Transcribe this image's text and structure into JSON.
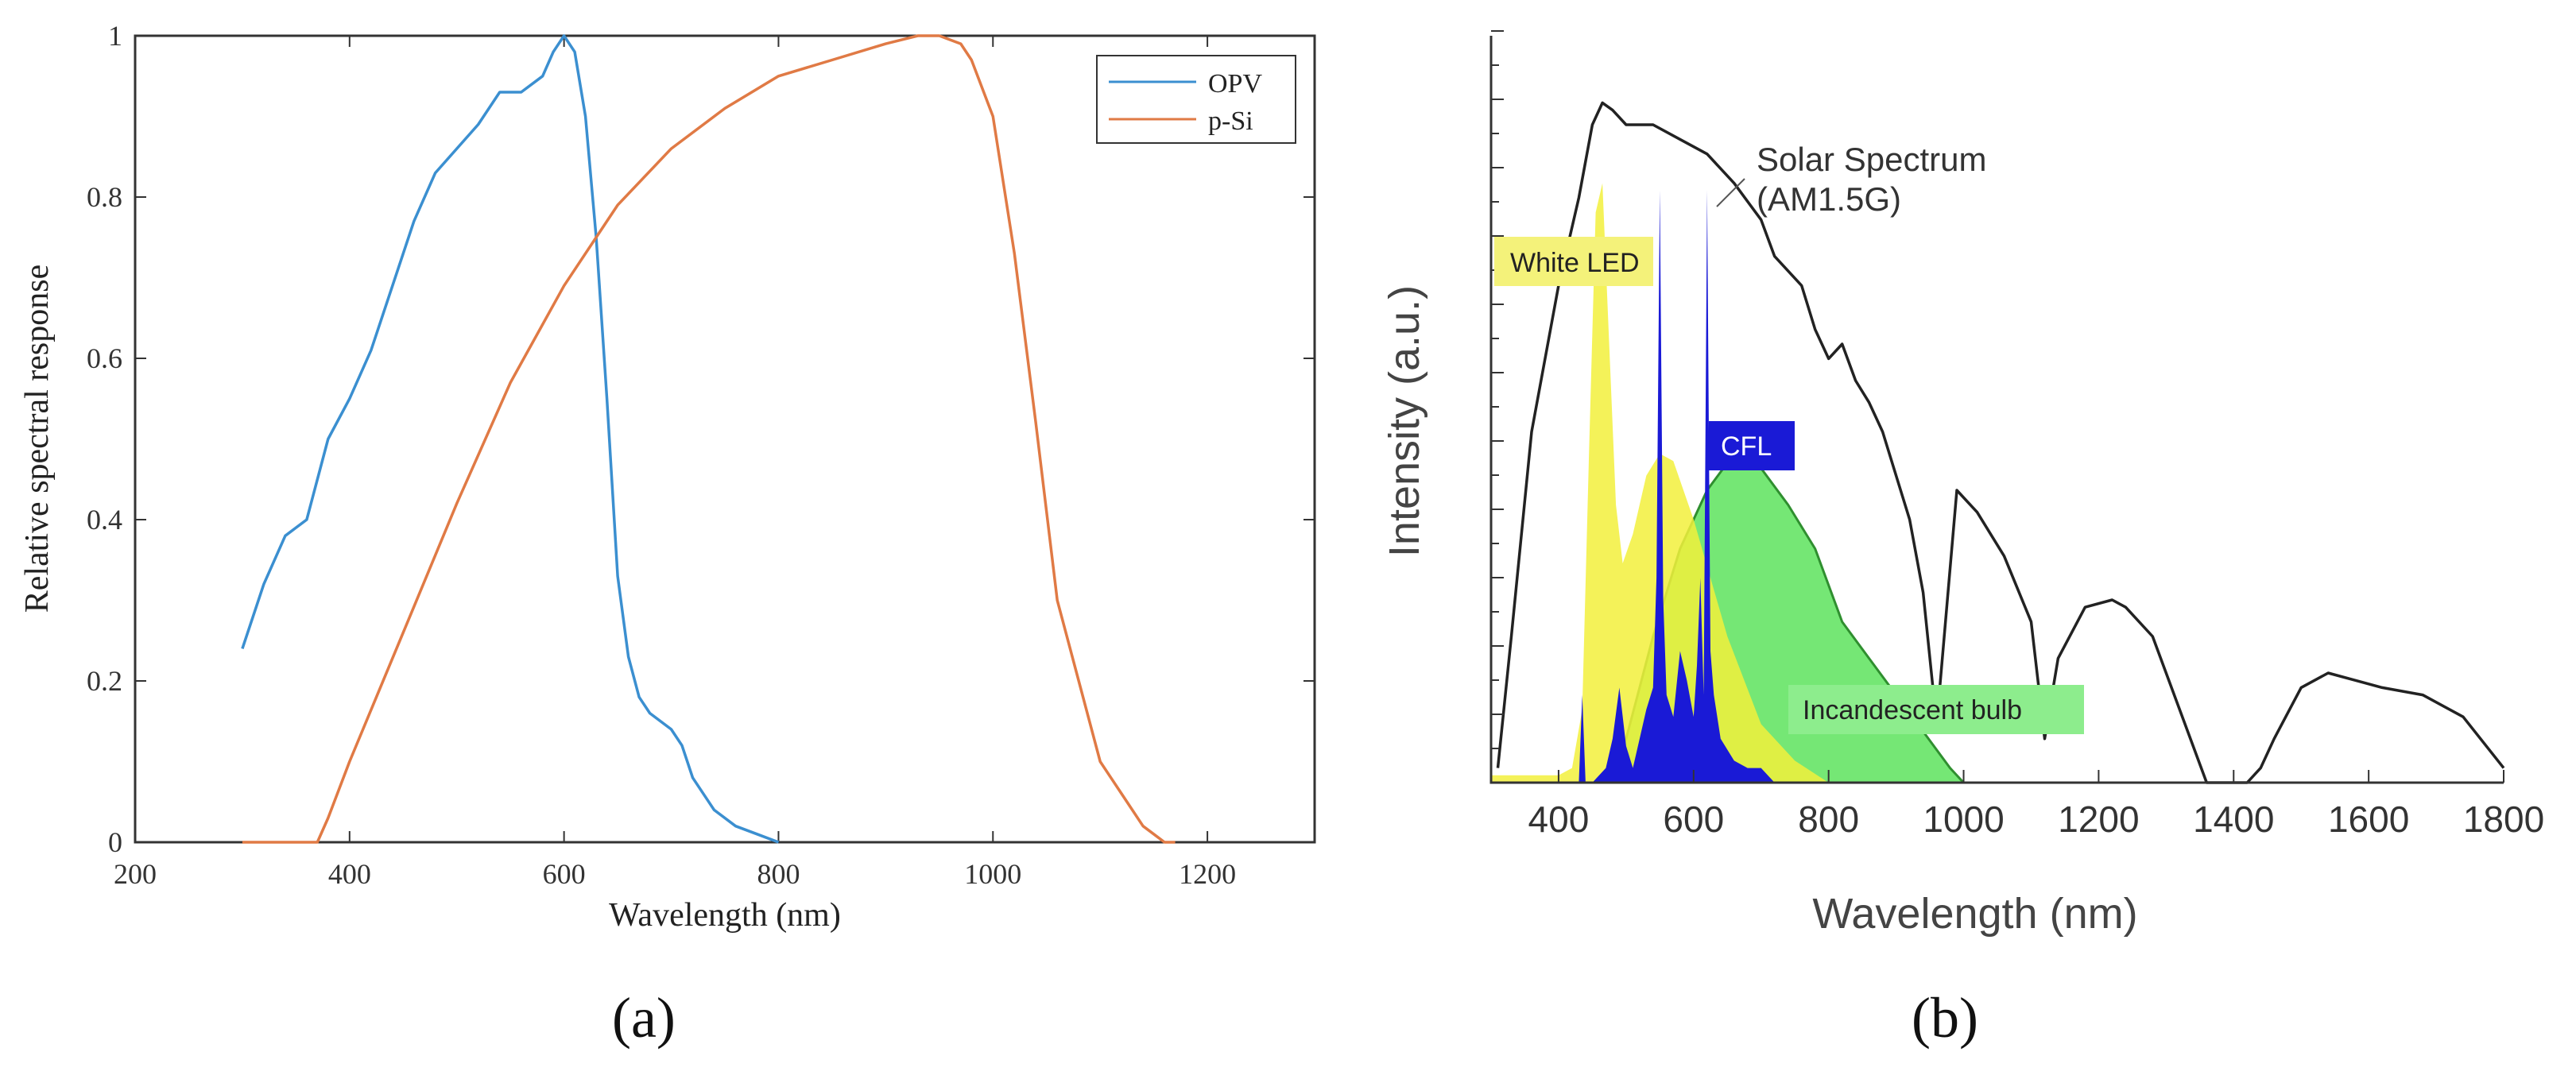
{
  "chart_data": [
    {
      "panel_label": "(a)",
      "type": "line",
      "xlabel": "Wavelength (nm)",
      "ylabel": "Relative spectral response",
      "xlim": [
        200,
        1300
      ],
      "ylim": [
        0,
        1
      ],
      "x_ticks": [
        "200",
        "400",
        "600",
        "800",
        "1000",
        "1200"
      ],
      "y_ticks": [
        "0",
        "0.2",
        "0.4",
        "0.6",
        "0.8",
        "1"
      ],
      "legend_position": "top-right",
      "grid": false,
      "series": [
        {
          "name": "OPV",
          "color": "#3b8fd0",
          "x": [
            300,
            320,
            340,
            350,
            360,
            380,
            400,
            420,
            440,
            460,
            480,
            500,
            520,
            540,
            560,
            580,
            590,
            600,
            610,
            620,
            630,
            640,
            650,
            660,
            670,
            680,
            700,
            710,
            720,
            740,
            760,
            780,
            800
          ],
          "y": [
            0.24,
            0.32,
            0.38,
            0.39,
            0.4,
            0.5,
            0.55,
            0.61,
            0.69,
            0.77,
            0.83,
            0.86,
            0.89,
            0.93,
            0.93,
            0.95,
            0.98,
            1.0,
            0.98,
            0.9,
            0.75,
            0.55,
            0.33,
            0.23,
            0.18,
            0.16,
            0.14,
            0.12,
            0.08,
            0.04,
            0.02,
            0.01,
            0.0
          ]
        },
        {
          "name": "p-Si",
          "color": "#e07a45",
          "x": [
            300,
            370,
            380,
            400,
            450,
            500,
            550,
            600,
            650,
            700,
            750,
            800,
            850,
            900,
            930,
            950,
            970,
            980,
            1000,
            1020,
            1040,
            1060,
            1080,
            1100,
            1120,
            1140,
            1150,
            1160,
            1170
          ],
          "y": [
            0,
            0,
            0.03,
            0.1,
            0.26,
            0.42,
            0.57,
            0.69,
            0.79,
            0.86,
            0.91,
            0.95,
            0.97,
            0.99,
            1.0,
            1.0,
            0.99,
            0.97,
            0.9,
            0.73,
            0.52,
            0.3,
            0.2,
            0.1,
            0.06,
            0.02,
            0.01,
            0.0,
            0.0
          ]
        }
      ]
    },
    {
      "panel_label": "(b)",
      "type": "area",
      "xlabel": "Wavelength (nm)",
      "ylabel": "Intensity (a.u.)",
      "xlim": [
        300,
        1800
      ],
      "ylim": [
        0,
        1
      ],
      "x_ticks": [
        "400",
        "600",
        "800",
        "1000",
        "1200",
        "1400",
        "1600",
        "1800"
      ],
      "grid": false,
      "annotations": {
        "solar": "Solar Spectrum\n(AM1.5G)",
        "led": "White LED",
        "cfl": "CFL",
        "incandescent": "Incandescent bulb"
      },
      "series": [
        {
          "name": "Solar Spectrum (AM1.5G)",
          "color": "#222222",
          "x": [
            310,
            330,
            360,
            400,
            430,
            450,
            465,
            480,
            500,
            540,
            580,
            620,
            660,
            700,
            720,
            760,
            780,
            800,
            820,
            840,
            860,
            880,
            900,
            920,
            940,
            960,
            990,
            1020,
            1060,
            1100,
            1120,
            1140,
            1180,
            1220,
            1240,
            1280,
            1320,
            1360,
            1380,
            1400,
            1420,
            1440,
            1460,
            1500,
            1540,
            1580,
            1620,
            1680,
            1740,
            1800
          ],
          "y": [
            0.02,
            0.2,
            0.48,
            0.68,
            0.8,
            0.9,
            0.93,
            0.92,
            0.9,
            0.9,
            0.88,
            0.86,
            0.82,
            0.77,
            0.72,
            0.68,
            0.62,
            0.58,
            0.6,
            0.55,
            0.52,
            0.48,
            0.42,
            0.36,
            0.26,
            0.08,
            0.4,
            0.37,
            0.31,
            0.22,
            0.06,
            0.17,
            0.24,
            0.25,
            0.24,
            0.2,
            0.1,
            0.0,
            0.0,
            0.0,
            0.0,
            0.02,
            0.06,
            0.13,
            0.15,
            0.14,
            0.13,
            0.12,
            0.09,
            0.02
          ]
        },
        {
          "name": "White LED",
          "color": "#f2f03c",
          "x": [
            300,
            400,
            420,
            435,
            445,
            455,
            465,
            475,
            485,
            495,
            510,
            530,
            550,
            570,
            600,
            650,
            700,
            750,
            800
          ],
          "y": [
            0.01,
            0.01,
            0.02,
            0.1,
            0.45,
            0.78,
            0.82,
            0.6,
            0.38,
            0.3,
            0.34,
            0.42,
            0.45,
            0.44,
            0.36,
            0.2,
            0.08,
            0.03,
            0.0
          ]
        },
        {
          "name": "Incandescent bulb",
          "color": "#6ee66e",
          "x": [
            470,
            500,
            540,
            580,
            620,
            660,
            700,
            740,
            780,
            820,
            860,
            900,
            940,
            980,
            1000
          ],
          "y": [
            0.0,
            0.06,
            0.2,
            0.32,
            0.4,
            0.45,
            0.43,
            0.38,
            0.32,
            0.22,
            0.17,
            0.12,
            0.07,
            0.02,
            0.0
          ]
        },
        {
          "name": "CFL",
          "color": "#1a1ad6",
          "x": [
            420,
            430,
            435,
            440,
            450,
            470,
            480,
            490,
            500,
            510,
            520,
            530,
            540,
            545,
            550,
            555,
            560,
            570,
            580,
            590,
            600,
            605,
            610,
            615,
            620,
            625,
            630,
            640,
            660,
            680,
            700,
            720
          ],
          "y": [
            0,
            0,
            0.12,
            0.0,
            0.0,
            0.02,
            0.06,
            0.13,
            0.05,
            0.02,
            0.06,
            0.1,
            0.13,
            0.28,
            0.81,
            0.25,
            0.12,
            0.09,
            0.18,
            0.14,
            0.09,
            0.16,
            0.28,
            0.12,
            0.81,
            0.18,
            0.12,
            0.06,
            0.03,
            0.02,
            0.02,
            0.0
          ]
        }
      ]
    }
  ]
}
